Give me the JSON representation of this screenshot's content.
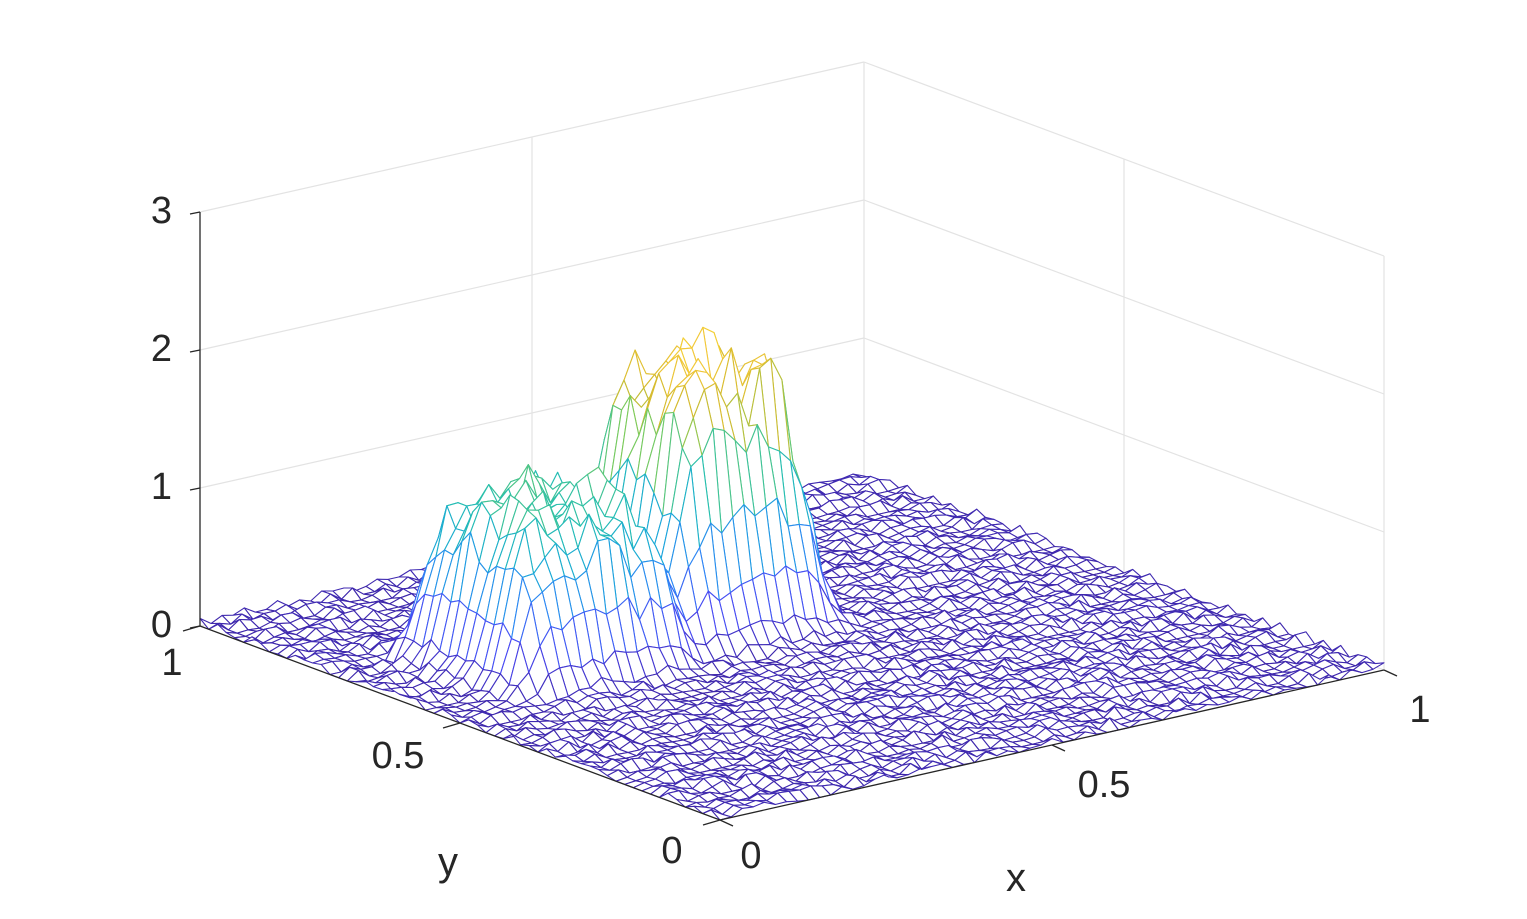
{
  "chart_data": {
    "type": "surface-mesh",
    "title": "",
    "xlabel": "x",
    "ylabel": "y",
    "zlabel": "",
    "xlim": [
      0,
      1
    ],
    "ylim": [
      0,
      1
    ],
    "zlim": [
      0,
      3
    ],
    "xticks": [
      "0",
      "0.5",
      "1"
    ],
    "yticks": [
      "0",
      "0.5",
      "1"
    ],
    "zticks": [
      "0",
      "1",
      "2",
      "3"
    ],
    "grid": true,
    "colormap": "parula",
    "colors": [
      "#3e26a8",
      "#4a48f3",
      "#2f83f7",
      "#1aa9d8",
      "#26bfb0",
      "#7bcb5c",
      "#d5bb2f",
      "#f2c83a",
      "#f9fb15"
    ],
    "mesh_resolution": 60,
    "noise_amplitude": 0.045,
    "peaks": [
      {
        "label": "front peak",
        "x_range": [
          0.38,
          0.58
        ],
        "y_range": [
          0.55,
          0.75
        ],
        "plateau_height": 1.85
      },
      {
        "label": "back peak",
        "x_range": [
          0.12,
          0.35
        ],
        "y_range": [
          0.52,
          0.75
        ],
        "plateau_height": 1.15
      }
    ]
  }
}
